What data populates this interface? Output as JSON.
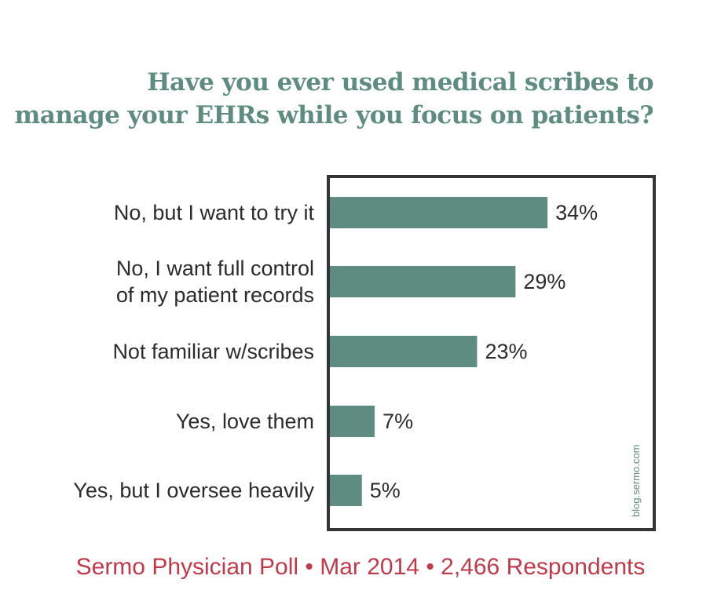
{
  "title": {
    "line1": "Have you ever used medical scribes to",
    "line2": "manage your EHRs while you focus on patients?"
  },
  "colors": {
    "bar": "#5e8c81",
    "title": "#5e8c81",
    "footer": "#c03a4a",
    "frame": "#333338"
  },
  "chart_data": {
    "type": "bar",
    "orientation": "horizontal",
    "categories": [
      [
        "No, but I want to try it"
      ],
      [
        "No, I want full control",
        "of my patient records"
      ],
      [
        "Not familiar w/scribes"
      ],
      [
        "Yes, love them"
      ],
      [
        "Yes, but I oversee heavily"
      ]
    ],
    "values": [
      34,
      29,
      23,
      7,
      5
    ],
    "value_labels": [
      "34%",
      "29%",
      "23%",
      "7%",
      "5%"
    ],
    "unit": "%",
    "xlim": [
      0,
      50
    ],
    "grid": false
  },
  "source": "blog.sermo.com",
  "footer": "Sermo Physician Poll • Mar 2014 • 2,466 Respondents"
}
